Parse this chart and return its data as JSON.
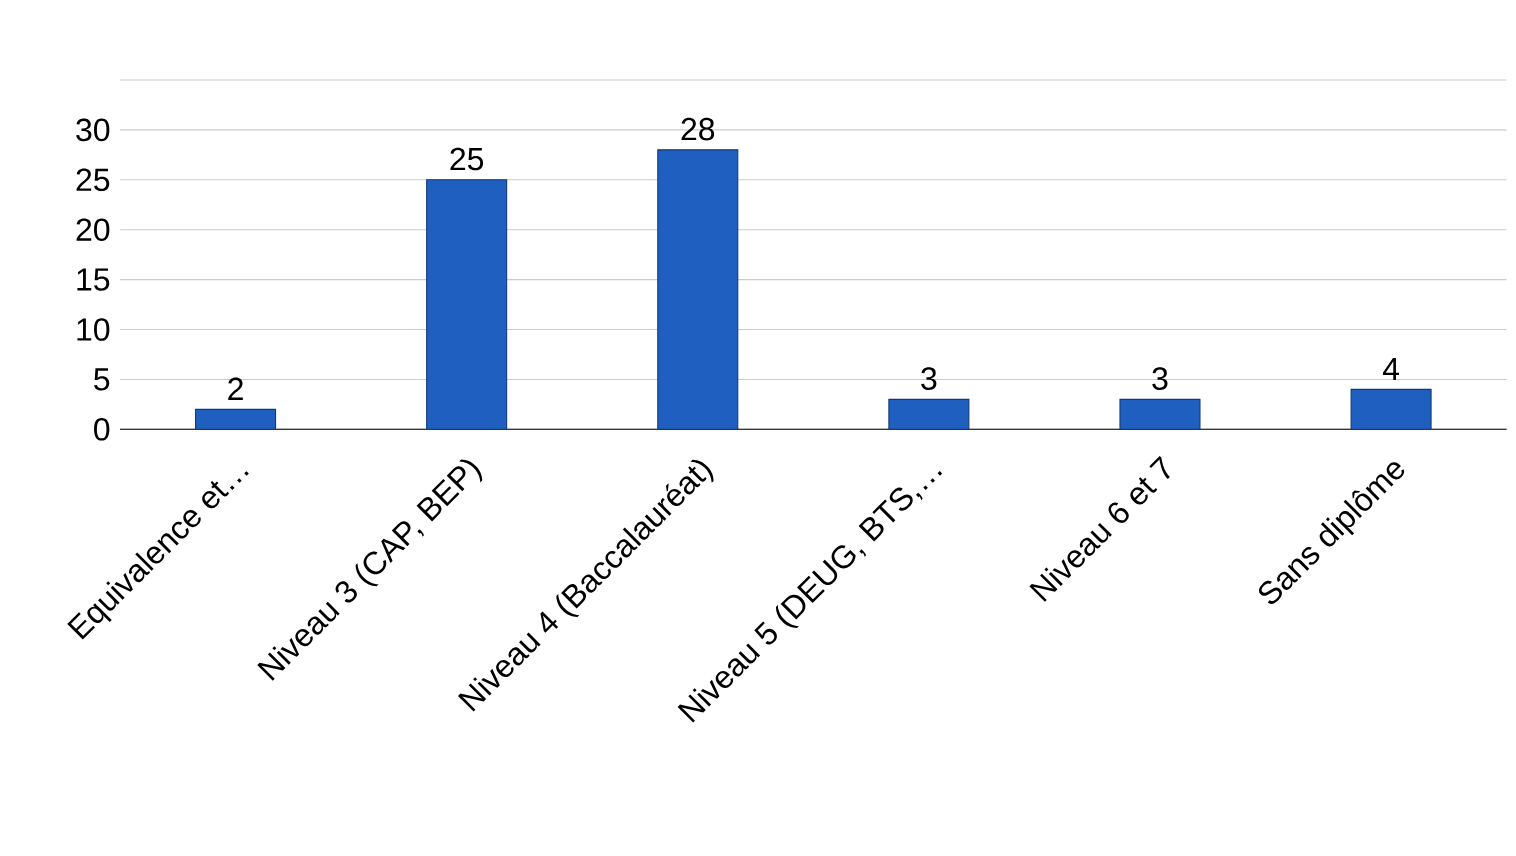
{
  "chart_data": {
    "type": "bar",
    "categories": [
      "Equivalence et…",
      "Niveau 3 (CAP, BEP)",
      "Niveau 4 (Baccalauréat)",
      "Niveau 5 (DEUG, BTS,…",
      "Niveau 6 et 7",
      "Sans diplôme"
    ],
    "values": [
      2,
      25,
      28,
      3,
      3,
      4
    ],
    "color": "#1f5fbf",
    "ylim": [
      0,
      35
    ],
    "yticks": [
      0,
      5,
      10,
      15,
      20,
      25,
      30,
      {
        "value": 35,
        "label": null
      }
    ],
    "grid": "y",
    "data_labels": true
  }
}
